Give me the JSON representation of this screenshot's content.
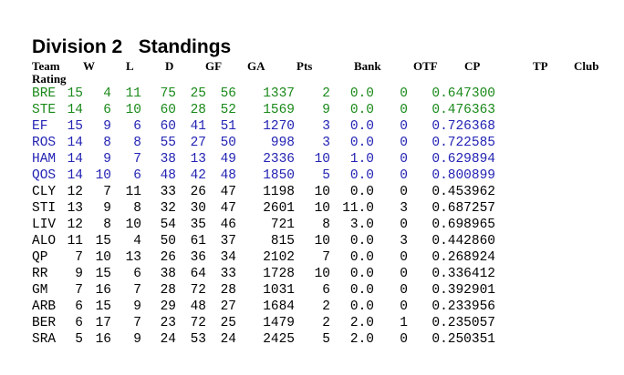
{
  "title": "Division 2   Standings",
  "headers": {
    "team": "Team",
    "w": "W",
    "l": "L",
    "d": "D",
    "gf": "GF",
    "ga": "GA",
    "pts": "Pts",
    "bank": "Bank",
    "otf": "OTF",
    "cp": "CP",
    "tp": "TP",
    "club": "Club",
    "rating": "Rating"
  },
  "colors": {
    "promotion": "#1a8a1a",
    "playoff": "#2323b4",
    "normal": "#000000"
  },
  "rows": [
    {
      "team": "BRE",
      "w": "15",
      "l": "4",
      "d": "11",
      "gf": "75",
      "ga": "25",
      "pts": "56",
      "bank": "1337",
      "otf": "2",
      "cp": "0.0",
      "tp": "0",
      "club": "0.647300",
      "status": "promotion"
    },
    {
      "team": "STE",
      "w": "14",
      "l": "6",
      "d": "10",
      "gf": "60",
      "ga": "28",
      "pts": "52",
      "bank": "1569",
      "otf": "9",
      "cp": "0.0",
      "tp": "0",
      "club": "0.476363",
      "status": "promotion"
    },
    {
      "team": "EF",
      "w": "15",
      "l": "9",
      "d": "6",
      "gf": "60",
      "ga": "41",
      "pts": "51",
      "bank": "1270",
      "otf": "3",
      "cp": "0.0",
      "tp": "0",
      "club": "0.726368",
      "status": "playoff"
    },
    {
      "team": "ROS",
      "w": "14",
      "l": "8",
      "d": "8",
      "gf": "55",
      "ga": "27",
      "pts": "50",
      "bank": "998",
      "otf": "3",
      "cp": "0.0",
      "tp": "0",
      "club": "0.722585",
      "status": "playoff"
    },
    {
      "team": "HAM",
      "w": "14",
      "l": "9",
      "d": "7",
      "gf": "38",
      "ga": "13",
      "pts": "49",
      "bank": "2336",
      "otf": "10",
      "cp": "1.0",
      "tp": "0",
      "club": "0.629894",
      "status": "playoff"
    },
    {
      "team": "QOS",
      "w": "14",
      "l": "10",
      "d": "6",
      "gf": "48",
      "ga": "42",
      "pts": "48",
      "bank": "1850",
      "otf": "5",
      "cp": "0.0",
      "tp": "0",
      "club": "0.800899",
      "status": "playoff"
    },
    {
      "team": "CLY",
      "w": "12",
      "l": "7",
      "d": "11",
      "gf": "33",
      "ga": "26",
      "pts": "47",
      "bank": "1198",
      "otf": "10",
      "cp": "0.0",
      "tp": "0",
      "club": "0.453962",
      "status": "normal"
    },
    {
      "team": "STI",
      "w": "13",
      "l": "9",
      "d": "8",
      "gf": "32",
      "ga": "30",
      "pts": "47",
      "bank": "2601",
      "otf": "10",
      "cp": "11.0",
      "tp": "3",
      "club": "0.687257",
      "status": "normal"
    },
    {
      "team": "LIV",
      "w": "12",
      "l": "8",
      "d": "10",
      "gf": "54",
      "ga": "35",
      "pts": "46",
      "bank": "721",
      "otf": "8",
      "cp": "3.0",
      "tp": "0",
      "club": "0.698965",
      "status": "normal"
    },
    {
      "team": "ALO",
      "w": "11",
      "l": "15",
      "d": "4",
      "gf": "50",
      "ga": "61",
      "pts": "37",
      "bank": "815",
      "otf": "10",
      "cp": "0.0",
      "tp": "3",
      "club": "0.442860",
      "status": "normal"
    },
    {
      "team": "QP",
      "w": "7",
      "l": "10",
      "d": "13",
      "gf": "26",
      "ga": "36",
      "pts": "34",
      "bank": "2102",
      "otf": "7",
      "cp": "0.0",
      "tp": "0",
      "club": "0.268924",
      "status": "normal"
    },
    {
      "team": "RR",
      "w": "9",
      "l": "15",
      "d": "6",
      "gf": "38",
      "ga": "64",
      "pts": "33",
      "bank": "1728",
      "otf": "10",
      "cp": "0.0",
      "tp": "0",
      "club": "0.336412",
      "status": "normal"
    },
    {
      "team": "GM",
      "w": "7",
      "l": "16",
      "d": "7",
      "gf": "28",
      "ga": "72",
      "pts": "28",
      "bank": "1031",
      "otf": "6",
      "cp": "0.0",
      "tp": "0",
      "club": "0.392901",
      "status": "normal"
    },
    {
      "team": "ARB",
      "w": "6",
      "l": "15",
      "d": "9",
      "gf": "29",
      "ga": "48",
      "pts": "27",
      "bank": "1684",
      "otf": "2",
      "cp": "0.0",
      "tp": "0",
      "club": "0.233956",
      "status": "normal"
    },
    {
      "team": "BER",
      "w": "6",
      "l": "17",
      "d": "7",
      "gf": "23",
      "ga": "72",
      "pts": "25",
      "bank": "1479",
      "otf": "2",
      "cp": "2.0",
      "tp": "1",
      "club": "0.235057",
      "status": "normal"
    },
    {
      "team": "SRA",
      "w": "5",
      "l": "16",
      "d": "9",
      "gf": "24",
      "ga": "53",
      "pts": "24",
      "bank": "2425",
      "otf": "5",
      "cp": "2.0",
      "tp": "0",
      "club": "0.250351",
      "status": "normal"
    }
  ]
}
